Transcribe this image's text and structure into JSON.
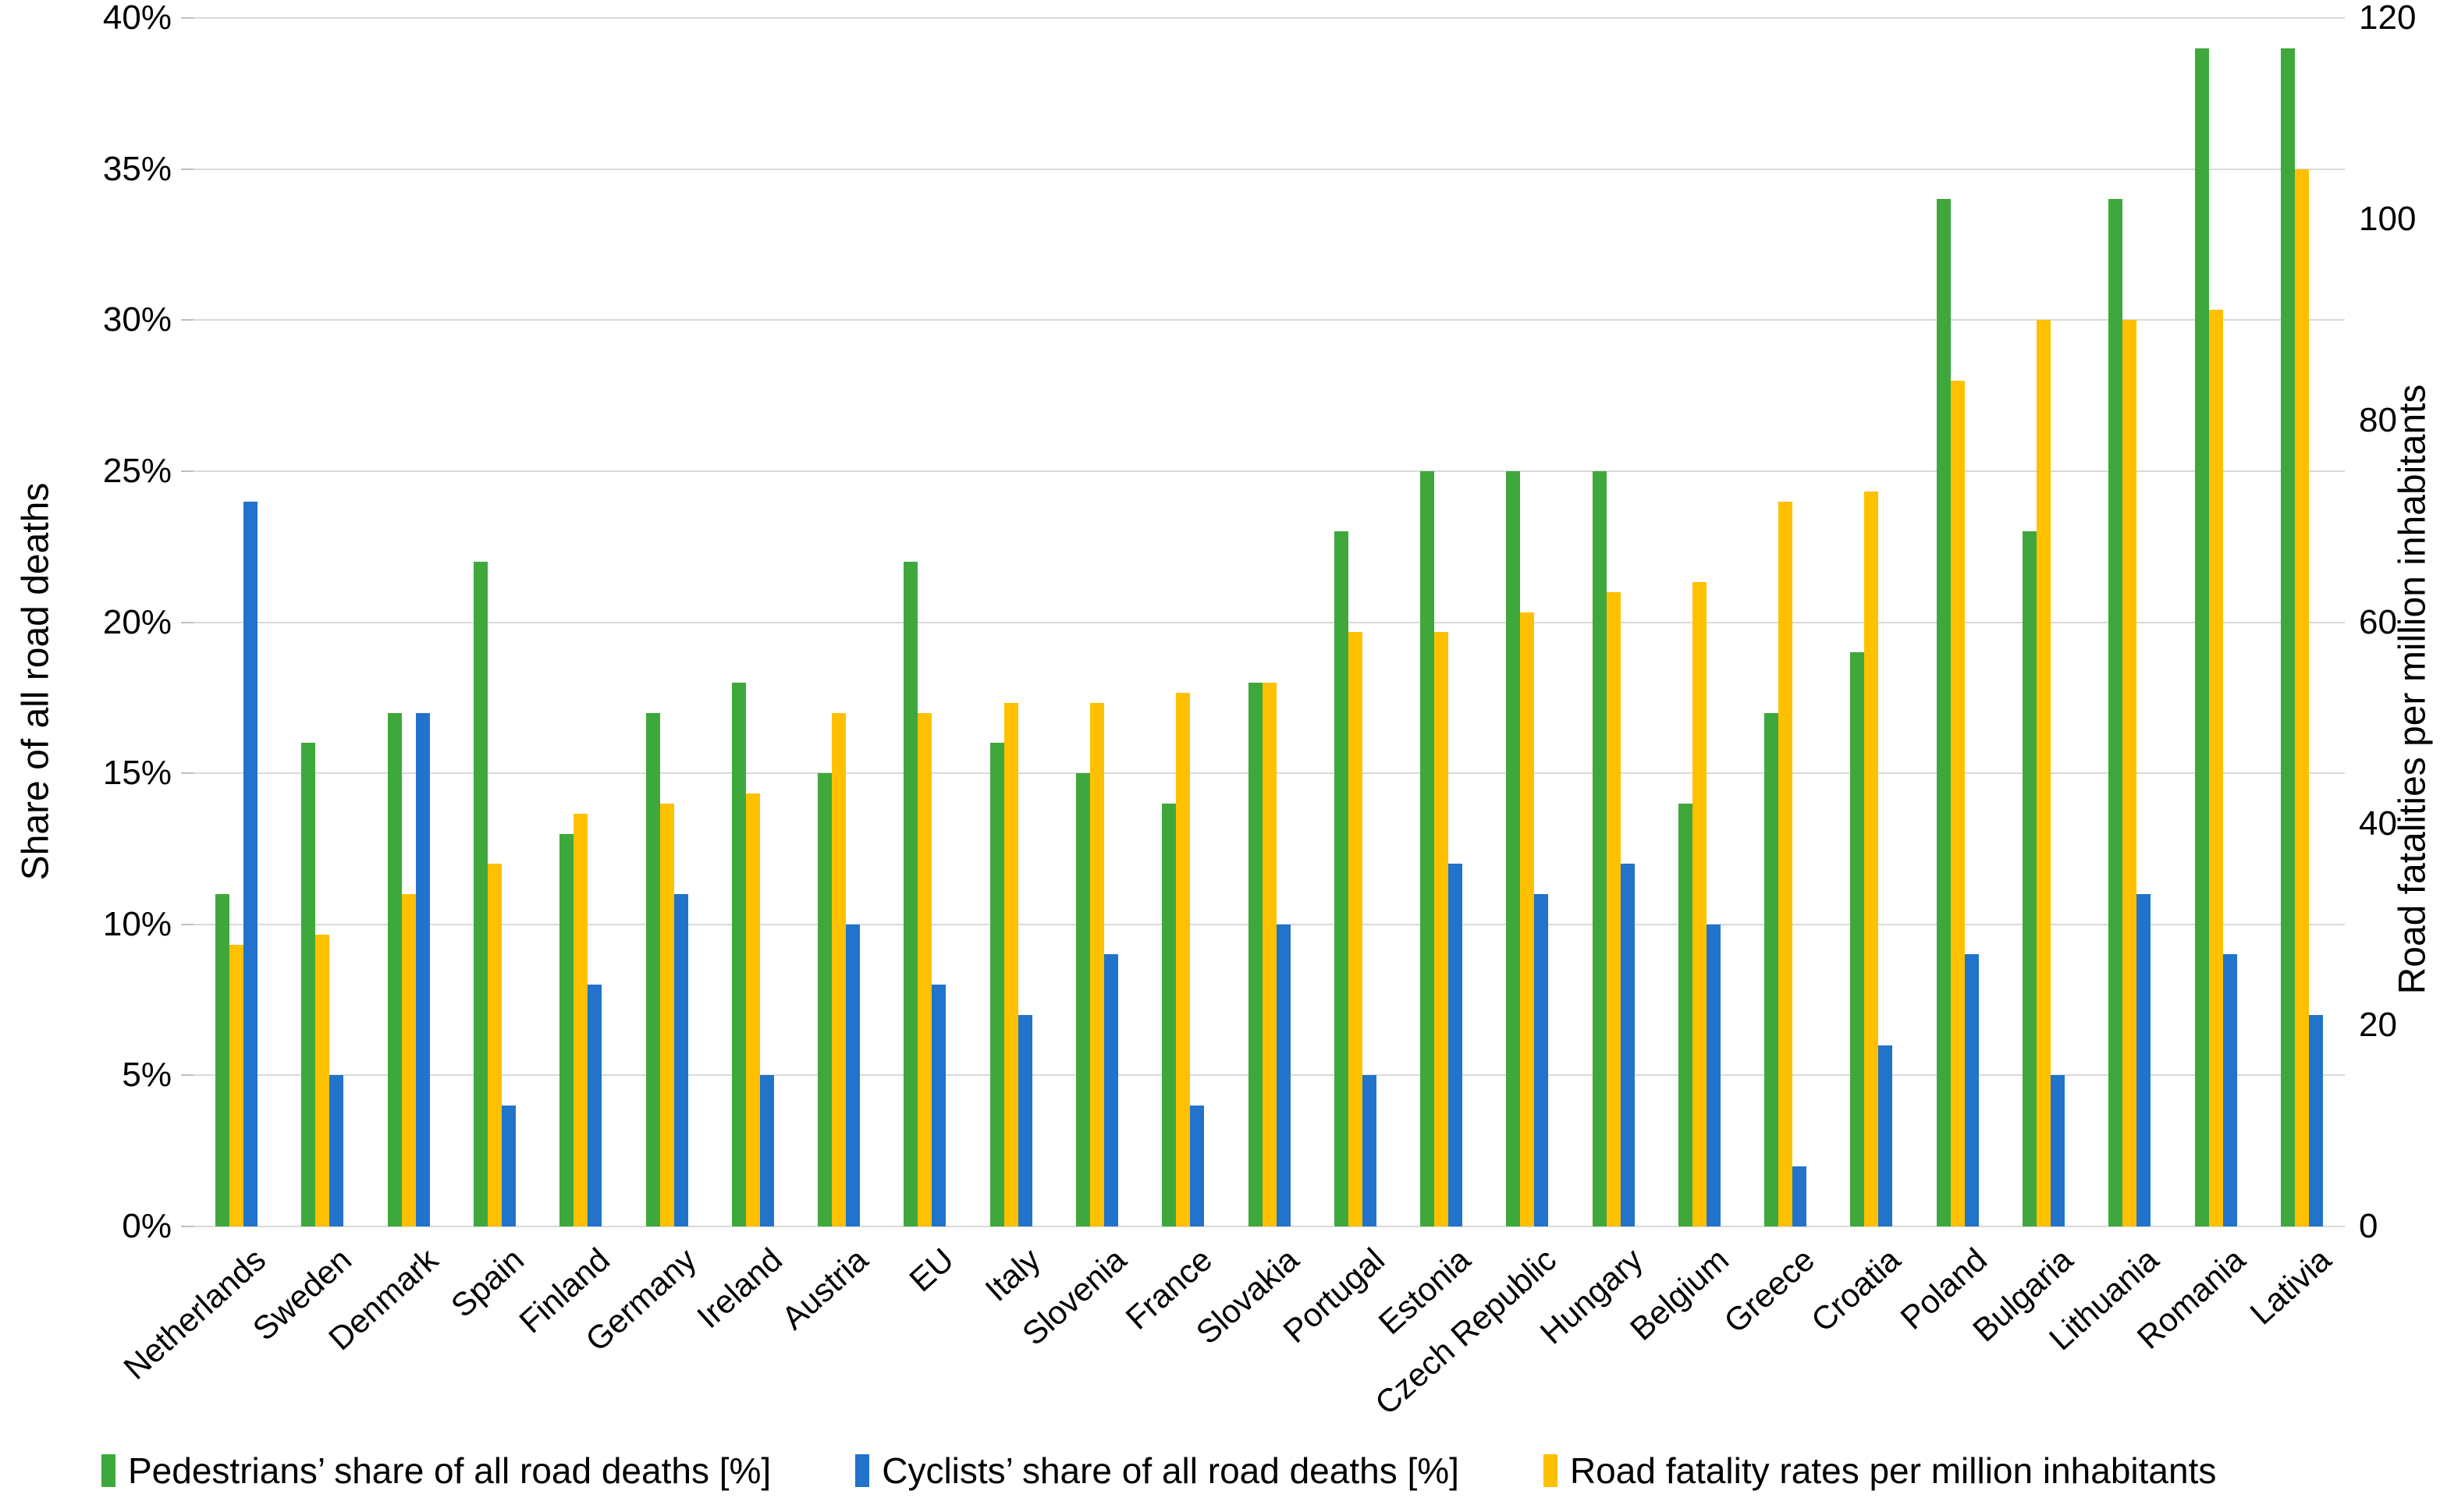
{
  "chart_data": {
    "type": "bar",
    "title": "",
    "categories": [
      "Netherlands",
      "Sweden",
      "Denmark",
      "Spain",
      "Finland",
      "Germany",
      "Ireland",
      "Austria",
      "EU",
      "Italy",
      "Slovenia",
      "France",
      "Slovakia",
      "Portugal",
      "Estonia",
      "Czech Republic",
      "Hungary",
      "Belgium",
      "Greece",
      "Croatia",
      "Poland",
      "Bulgaria",
      "Lithuania",
      "Romania",
      "Lativia"
    ],
    "series": [
      {
        "id": "pedestrians",
        "name": "Pedestrians’ share of all road deaths [%]",
        "axis": "left",
        "color": "#3FA83C",
        "values": [
          11,
          16,
          17,
          22,
          13,
          17,
          18,
          15,
          22,
          16,
          15,
          14,
          18,
          23,
          25,
          25,
          25,
          14,
          17,
          19,
          34,
          23,
          34,
          39,
          39
        ]
      },
      {
        "id": "cyclists",
        "name": "Cyclists’ share of all road deaths [%]",
        "axis": "left",
        "color": "#2173CB",
        "values": [
          24,
          5,
          17,
          4,
          8,
          11,
          5,
          10,
          8,
          7,
          9,
          4,
          10,
          5,
          12,
          11,
          12,
          10,
          2,
          6,
          9,
          5,
          11,
          9,
          7
        ]
      },
      {
        "id": "fatality_rates",
        "name": "Road fatality rates per million inhabitants",
        "axis": "right",
        "color": "#FFC000",
        "values": [
          28,
          29,
          33,
          36,
          41,
          42,
          43,
          51,
          51,
          52,
          52,
          53,
          54,
          59,
          59,
          61,
          63,
          64,
          72,
          73,
          84,
          90,
          90,
          91,
          105
        ]
      }
    ],
    "group_display_order": [
      "pedestrians",
      "fatality_rates",
      "cyclists"
    ],
    "left_axis": {
      "title": "Share of all road deaths",
      "min": 0,
      "max": 40,
      "tick_values": [
        0,
        5,
        10,
        15,
        20,
        25,
        30,
        35,
        40
      ],
      "tick_labels": [
        "0%",
        "5%",
        "10%",
        "15%",
        "20%",
        "25%",
        "30%",
        "35%",
        "40%"
      ]
    },
    "right_axis": {
      "title": "Road fatalities per million inhabitants",
      "min": 0,
      "max": 120,
      "tick_values": [
        0,
        20,
        40,
        60,
        80,
        100,
        120
      ],
      "tick_labels": [
        "0",
        "20",
        "40",
        "60",
        "80",
        "100",
        "120"
      ]
    },
    "legend_position": "bottom",
    "grid": "horizontal",
    "colors": {
      "gridline": "#d9d9d9",
      "text": "#000000",
      "background": "#ffffff"
    }
  }
}
